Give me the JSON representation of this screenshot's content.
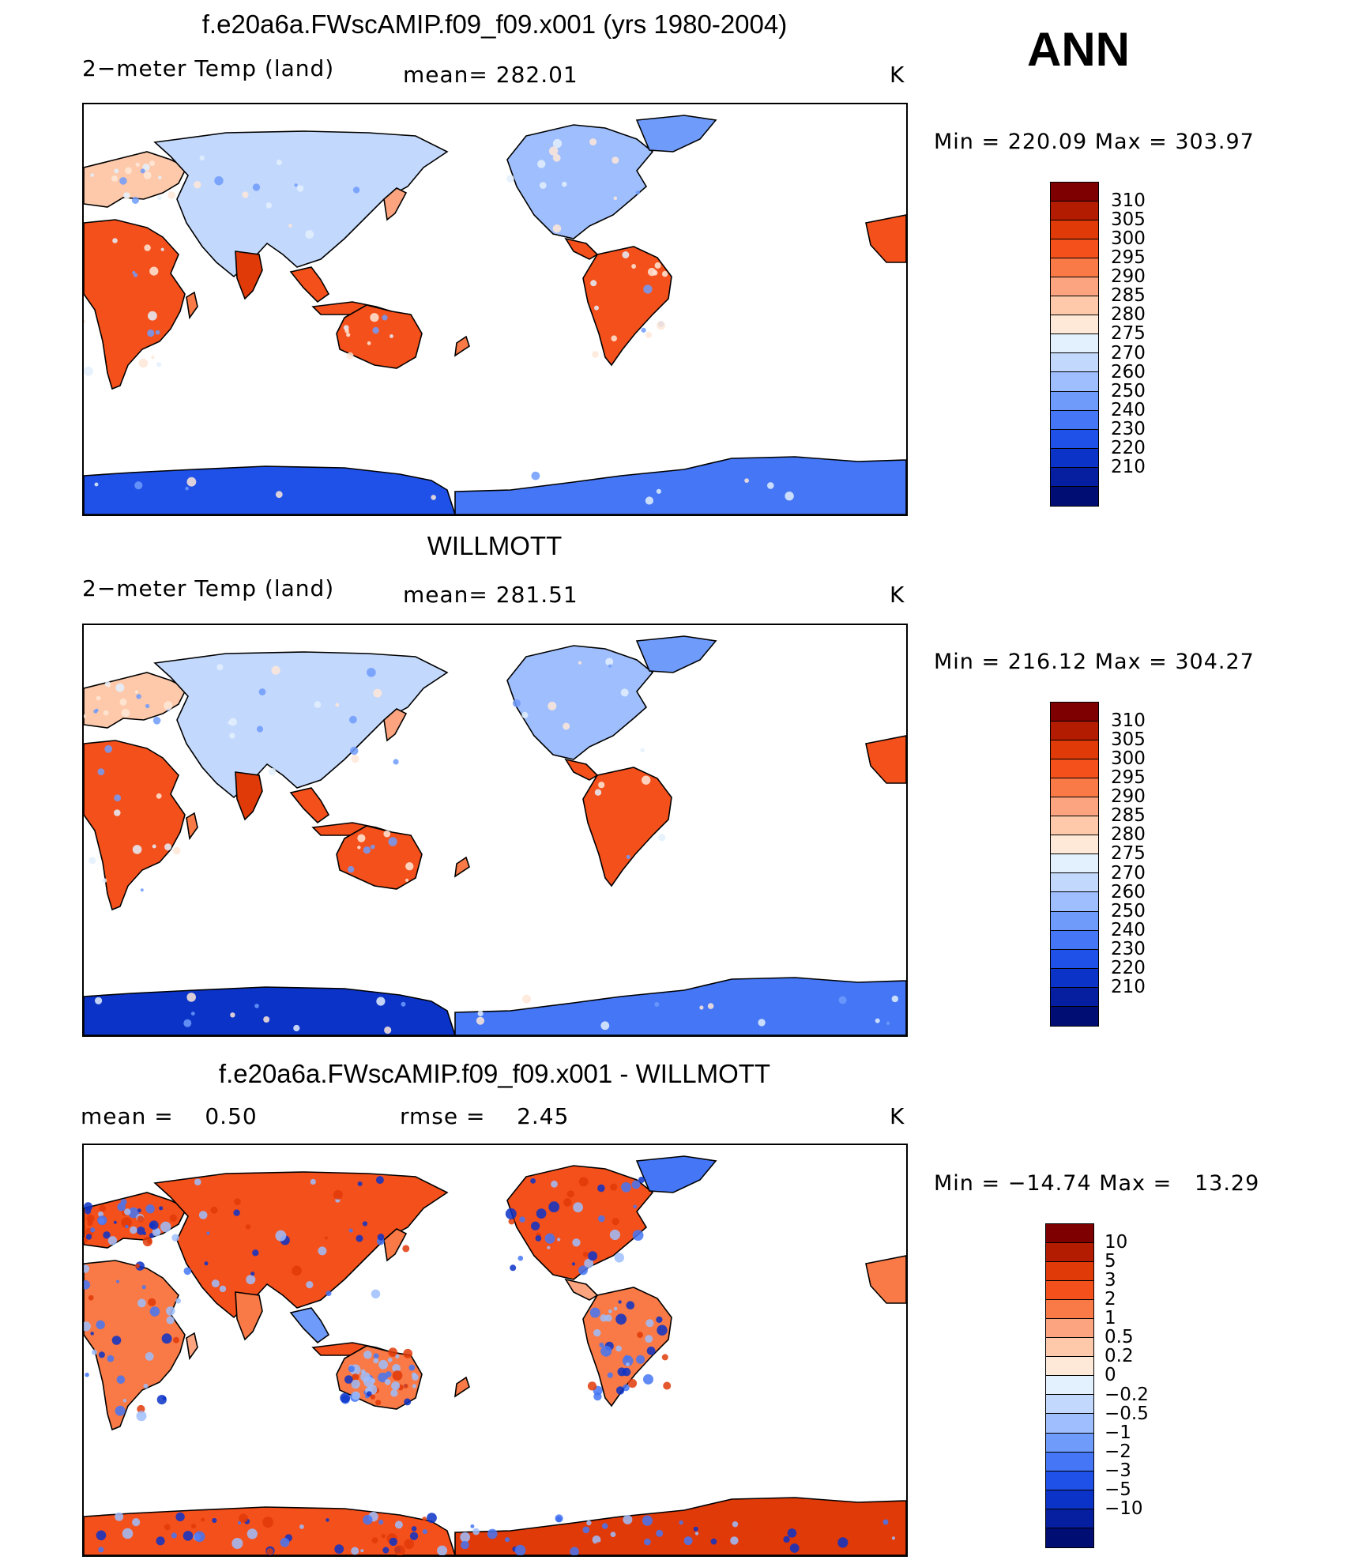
{
  "season": "ANN",
  "colors": {
    "temp_scale": [
      "#7f0000",
      "#b31c00",
      "#e03a08",
      "#f4501b",
      "#f97a46",
      "#fba47f",
      "#fdc9aa",
      "#fee8d8",
      "#e3f0fd",
      "#c2d8fd",
      "#9ebefd",
      "#6f9bfb",
      "#4476f5",
      "#1f50e8",
      "#0b33c8",
      "#061ea0",
      "#000d73"
    ],
    "diff_scale": [
      "#7f0000",
      "#b31c00",
      "#e03a08",
      "#f4501b",
      "#f97a46",
      "#fba47f",
      "#fdc9aa",
      "#fee8d8",
      "#e3f0fd",
      "#c2d8fd",
      "#9ebefd",
      "#6f9bfb",
      "#4476f5",
      "#1f50e8",
      "#0b33c8",
      "#061ea0",
      "#000d73"
    ]
  },
  "panels": [
    {
      "title": "f.e20a6a.FWscAMIP.f09_f09.x001 (yrs 1980-2004)",
      "left_label": "2−meter Temp (land)",
      "center_label": "mean= 282.01",
      "units": "K",
      "minmax": "Min = 220.09 Max = 303.97"
    },
    {
      "title": "WILLMOTT",
      "left_label": "2−meter Temp (land)",
      "center_label": "mean= 281.51",
      "units": "K",
      "minmax": "Min = 216.12 Max = 304.27"
    },
    {
      "title": "f.e20a6a.FWscAMIP.f09_f09.x001 - WILLMOTT",
      "left_label": "mean =    0.50",
      "center_label": "rmse =    2.45",
      "units": "K",
      "minmax": "Min = −14.74 Max =   13.29"
    }
  ],
  "chart_data": [
    {
      "type": "heatmap",
      "title": "f.e20a6a.FWscAMIP.f09_f09.x001 (yrs 1980-2004)",
      "variable": "2-meter Temp (land)",
      "mean": 282.01,
      "units": "K",
      "min": 220.09,
      "max": 303.97,
      "colorbar_levels": [
        "310",
        "305",
        "300",
        "295",
        "290",
        "285",
        "280",
        "275",
        "270",
        "260",
        "250",
        "240",
        "230",
        "220",
        "210"
      ]
    },
    {
      "type": "heatmap",
      "title": "WILLMOTT",
      "variable": "2-meter Temp (land)",
      "mean": 281.51,
      "units": "K",
      "min": 216.12,
      "max": 304.27,
      "colorbar_levels": [
        "310",
        "305",
        "300",
        "295",
        "290",
        "285",
        "280",
        "275",
        "270",
        "260",
        "250",
        "240",
        "230",
        "220",
        "210"
      ]
    },
    {
      "type": "heatmap",
      "title": "f.e20a6a.FWscAMIP.f09_f09.x001 - WILLMOTT",
      "mean": 0.5,
      "rmse": 2.45,
      "units": "K",
      "min": -14.74,
      "max": 13.29,
      "colorbar_levels": [
        "10",
        "5",
        "3",
        "2",
        "1",
        "0.5",
        "0.2",
        "0",
        "−0.2",
        "−0.5",
        "−1",
        "−2",
        "−3",
        "−5",
        "−10"
      ]
    }
  ]
}
